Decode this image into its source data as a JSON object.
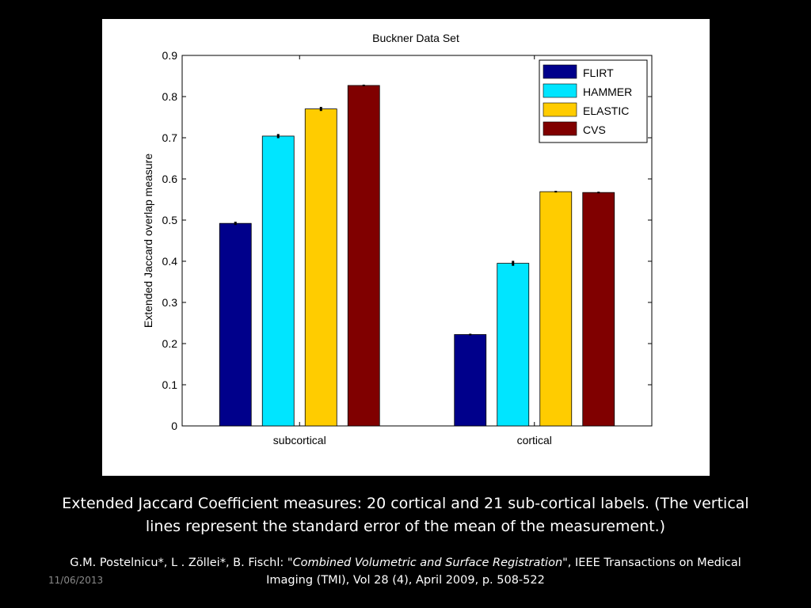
{
  "chart_data": {
    "type": "bar",
    "title": "Buckner Data Set",
    "xlabel": "",
    "ylabel": "Extended Jaccard overlap measure",
    "categories": [
      "subcortical",
      "cortical"
    ],
    "ylim": [
      0,
      0.9
    ],
    "yticks": [
      "0",
      "0.1",
      "0.2",
      "0.3",
      "0.4",
      "0.5",
      "0.6",
      "0.7",
      "0.8",
      "0.9"
    ],
    "grid": false,
    "legend_position": "top-right",
    "series": [
      {
        "name": "FLIRT",
        "color": "#00008b",
        "values": [
          0.492,
          0.222
        ],
        "errors": [
          0.004,
          0.002
        ]
      },
      {
        "name": "HAMMER",
        "color": "#00e5ff",
        "values": [
          0.704,
          0.395
        ],
        "errors": [
          0.005,
          0.006
        ]
      },
      {
        "name": "ELASTIC",
        "color": "#ffcc00",
        "values": [
          0.77,
          0.569
        ],
        "errors": [
          0.005,
          0.002
        ]
      },
      {
        "name": "CVS",
        "color": "#800000",
        "values": [
          0.827,
          0.567
        ],
        "errors": [
          0.002,
          0.002
        ]
      }
    ]
  },
  "caption": {
    "line1": "Extended Jaccard Coefficient measures: 20 cortical and 21 sub-cortical labels. (The vertical",
    "line2": "lines represent the standard error of the mean of the measurement.)"
  },
  "citation": {
    "authors": "G.M. Postelnicu*, L . Zöllei*, B. Fischl: \"",
    "title": "Combined Volumetric and Surface Registration",
    "journal": "\", IEEE Transactions on Medical",
    "line2": "Imaging (TMI), Vol 28 (4), April 2009, p. 508-522"
  },
  "slide": {
    "date": "11/06/2013"
  }
}
